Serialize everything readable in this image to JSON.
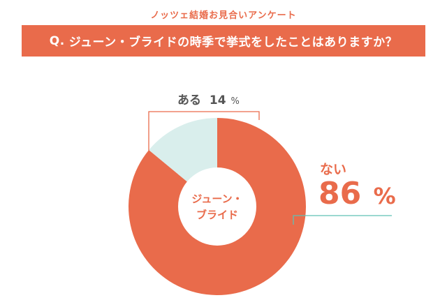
{
  "survey_title": "ノッツェ結婚お見合いアンケート",
  "question": {
    "prefix": "Q.",
    "text": "ジューン・ブライドの時季で挙式をしたことはありますか？"
  },
  "colors": {
    "accent": "#e96b4b",
    "light_slice": "#d9eeec",
    "leader_line_teal": "#5fc0b5",
    "text_gray": "#555555"
  },
  "chart_data": {
    "type": "pie",
    "variant": "donut",
    "center_label": [
      "ジューン・",
      "ブライド"
    ],
    "slices": [
      {
        "label": "ない",
        "value": 86,
        "unit": "%",
        "color": "#e96b4b"
      },
      {
        "label": "ある",
        "value": 14,
        "unit": "%",
        "color": "#d9eeec"
      }
    ]
  }
}
